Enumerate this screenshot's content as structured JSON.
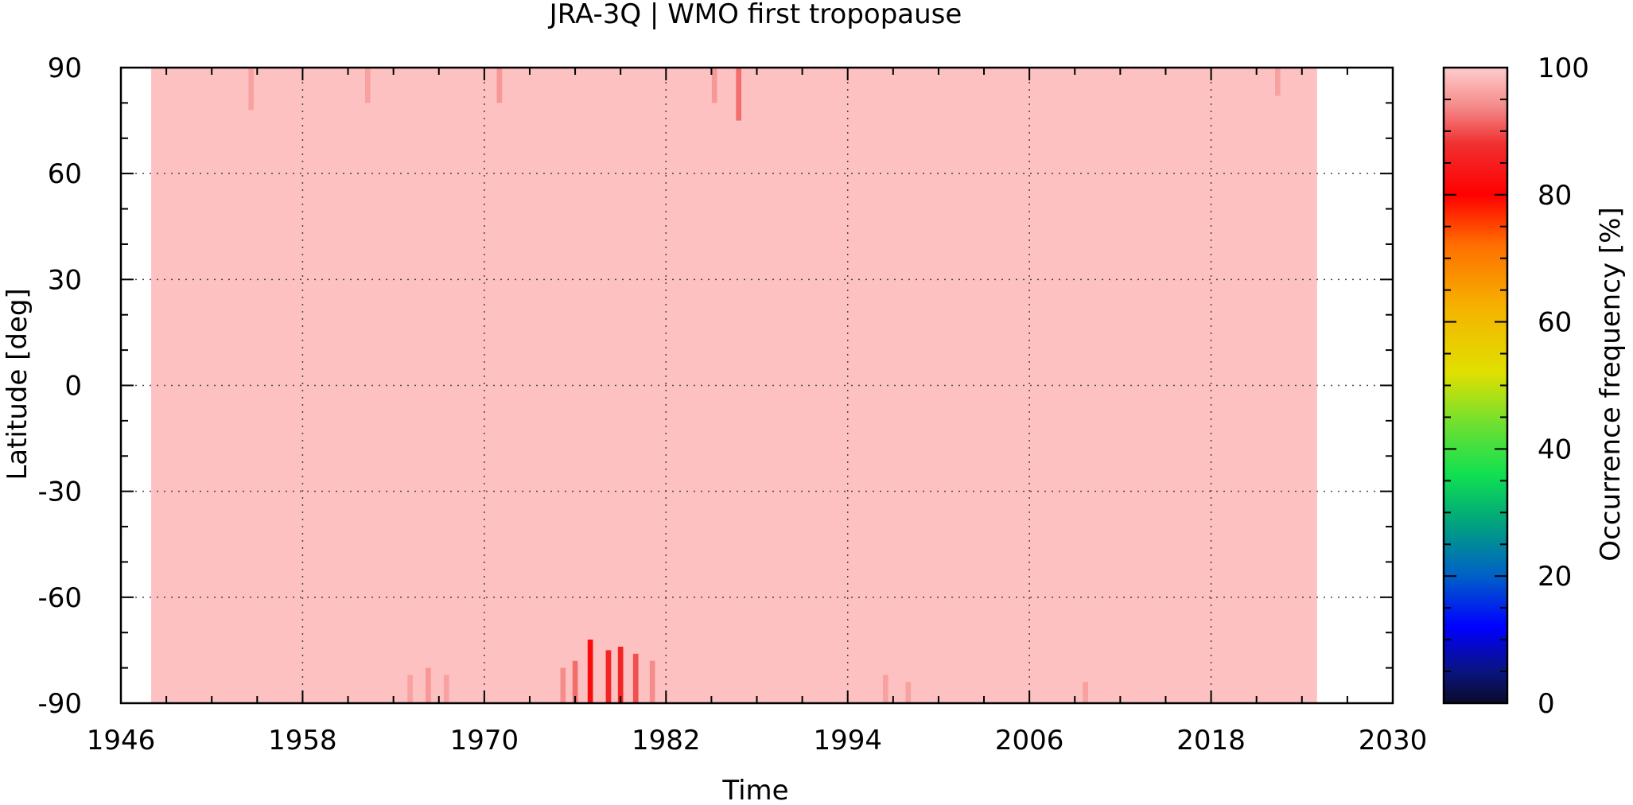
{
  "chart_data": {
    "type": "heatmap",
    "title": "JRA-3Q | WMO first tropopause",
    "xlabel": "Time",
    "ylabel": "Latitude [deg]",
    "xlim": [
      1946,
      2030
    ],
    "ylim": [
      -90,
      90
    ],
    "x_ticks": [
      1946,
      1958,
      1970,
      1982,
      1994,
      2006,
      2018,
      2030
    ],
    "y_ticks": [
      -90,
      -60,
      -30,
      0,
      30,
      60,
      90
    ],
    "grid": true,
    "data_extent": {
      "x": [
        1948,
        2025
      ],
      "y": [
        -90,
        90
      ]
    },
    "baseline_value": 99,
    "colorbar": {
      "label": "Occurrence frequency [%]",
      "range": [
        0,
        100
      ],
      "ticks": [
        0,
        20,
        40,
        60,
        80,
        100
      ],
      "colormap": [
        {
          "v": 0,
          "color": "#0a0a2a"
        },
        {
          "v": 5,
          "color": "#0a1480"
        },
        {
          "v": 12,
          "color": "#0000ff"
        },
        {
          "v": 20,
          "color": "#0060c8"
        },
        {
          "v": 28,
          "color": "#00a080"
        },
        {
          "v": 36,
          "color": "#10e050"
        },
        {
          "v": 44,
          "color": "#70e030"
        },
        {
          "v": 52,
          "color": "#e0e000"
        },
        {
          "v": 62,
          "color": "#f5b400"
        },
        {
          "v": 72,
          "color": "#ff7000"
        },
        {
          "v": 80,
          "color": "#ff0000"
        },
        {
          "v": 88,
          "color": "#f03030"
        },
        {
          "v": 94,
          "color": "#f58c8c"
        },
        {
          "v": 100,
          "color": "#ffcccc"
        }
      ]
    },
    "anomalies": [
      {
        "x": 1977.0,
        "lat": [
          -90,
          -72
        ],
        "value": 82
      },
      {
        "x": 1978.2,
        "lat": [
          -90,
          -75
        ],
        "value": 86
      },
      {
        "x": 1979.0,
        "lat": [
          -90,
          -74
        ],
        "value": 86
      },
      {
        "x": 1980.0,
        "lat": [
          -90,
          -76
        ],
        "value": 90
      },
      {
        "x": 1976.0,
        "lat": [
          -90,
          -78
        ],
        "value": 92
      },
      {
        "x": 1975.2,
        "lat": [
          -90,
          -80
        ],
        "value": 94
      },
      {
        "x": 1981.1,
        "lat": [
          -90,
          -78
        ],
        "value": 94
      },
      {
        "x": 1966.3,
        "lat": [
          -90,
          -80
        ],
        "value": 95
      },
      {
        "x": 1965.1,
        "lat": [
          -90,
          -82
        ],
        "value": 96
      },
      {
        "x": 1967.5,
        "lat": [
          -90,
          -82
        ],
        "value": 96
      },
      {
        "x": 1996.5,
        "lat": [
          -90,
          -82
        ],
        "value": 96
      },
      {
        "x": 1998.0,
        "lat": [
          -90,
          -84
        ],
        "value": 96
      },
      {
        "x": 2009.7,
        "lat": [
          -90,
          -84
        ],
        "value": 96
      },
      {
        "x": 1986.8,
        "lat": [
          75,
          90
        ],
        "value": 92
      },
      {
        "x": 1985.2,
        "lat": [
          80,
          90
        ],
        "value": 95
      },
      {
        "x": 1971.0,
        "lat": [
          80,
          90
        ],
        "value": 95
      },
      {
        "x": 1954.6,
        "lat": [
          78,
          90
        ],
        "value": 96
      },
      {
        "x": 1962.3,
        "lat": [
          80,
          90
        ],
        "value": 96
      },
      {
        "x": 2022.4,
        "lat": [
          82,
          90
        ],
        "value": 96
      }
    ]
  }
}
